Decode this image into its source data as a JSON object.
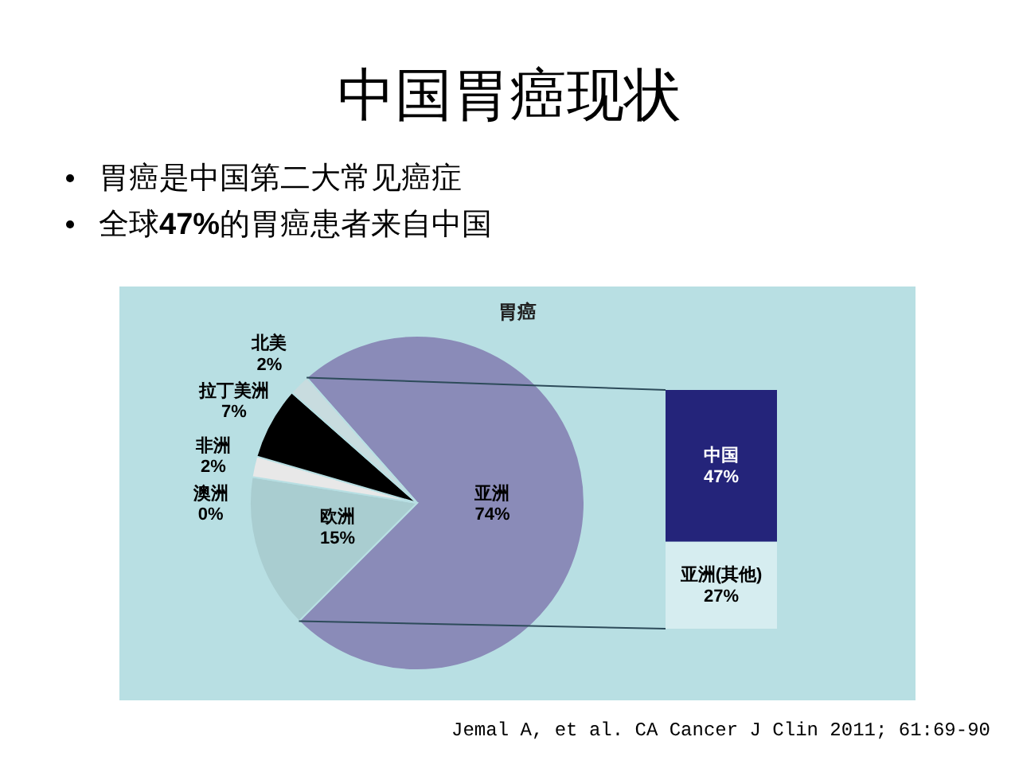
{
  "chart_data": [
    {
      "type": "pie",
      "title": "胃癌",
      "categories": [
        "亚洲",
        "欧洲",
        "澳洲",
        "非洲",
        "拉丁美洲",
        "北美"
      ],
      "values": [
        74,
        15,
        0,
        2,
        7,
        2
      ],
      "colors": [
        "#8a8bb8",
        "#a9cdd0",
        "#24247a",
        "#e8e8e8",
        "#000000",
        "#c8dcdf"
      ],
      "value_labels": [
        "74%",
        "15%",
        "0%",
        "2%",
        "7%",
        "2%"
      ],
      "annotations": [
        "中国胃癌现状",
        "胃癌是中国第二大常见癌症",
        "全球47%的胃癌患者来自中国",
        "Jemal A, et al. CA Cancer J Clin 2011; 61:69-90"
      ]
    },
    {
      "type": "bar",
      "stacked": true,
      "categories": [
        null
      ],
      "series": [
        {
          "name": "亚洲(其他)",
          "color": "#d6edf0",
          "values": [
            27
          ],
          "value_labels": [
            "27%"
          ]
        },
        {
          "name": "中国",
          "color": "#24247a",
          "values": [
            47
          ],
          "value_labels": [
            "47%"
          ]
        }
      ]
    }
  ]
}
